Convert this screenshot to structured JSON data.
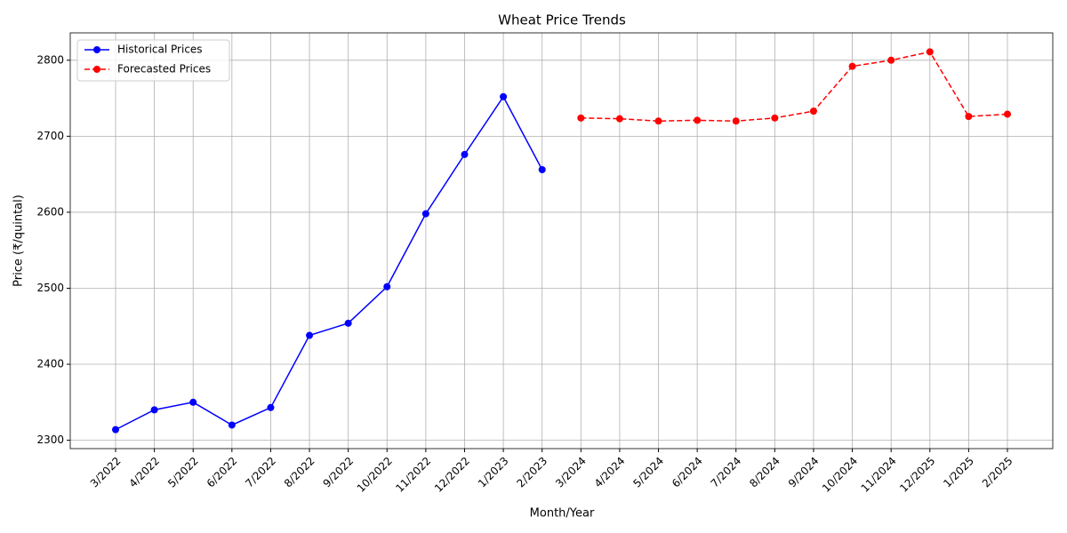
{
  "chart_data": {
    "type": "line",
    "title": "Wheat Price Trends",
    "x_label": "Month/Year",
    "y_label": "Price (₹/quintal)",
    "categories": [
      "3/2022",
      "4/2022",
      "5/2022",
      "6/2022",
      "7/2022",
      "8/2022",
      "9/2022",
      "10/2022",
      "11/2022",
      "12/2022",
      "1/2023",
      "2/2023",
      "3/2024",
      "4/2024",
      "5/2024",
      "6/2024",
      "7/2024",
      "8/2024",
      "9/2024",
      "10/2024",
      "11/2024",
      "12/2025",
      "1/2025",
      "2/2025"
    ],
    "series": [
      {
        "name": "Historical Prices",
        "color": "#0000ff",
        "linestyle": "solid",
        "values": [
          2314,
          2340,
          2350,
          2320,
          2343,
          2438,
          2454,
          2502,
          2598,
          2676,
          2752,
          2656,
          null,
          null,
          null,
          null,
          null,
          null,
          null,
          null,
          null,
          null,
          null,
          null
        ]
      },
      {
        "name": "Forecasted Prices",
        "color": "#ff0000",
        "linestyle": "dashed",
        "values": [
          null,
          null,
          null,
          null,
          null,
          null,
          null,
          null,
          null,
          null,
          null,
          null,
          2724,
          2723,
          2720,
          2721,
          2720,
          2724,
          2733,
          2792,
          2800,
          2811,
          2726,
          2729
        ]
      }
    ],
    "ylim": [
      2289,
      2836
    ],
    "yticks": [
      2300,
      2400,
      2500,
      2600,
      2700,
      2800
    ],
    "grid": true,
    "legend": "upper left"
  }
}
